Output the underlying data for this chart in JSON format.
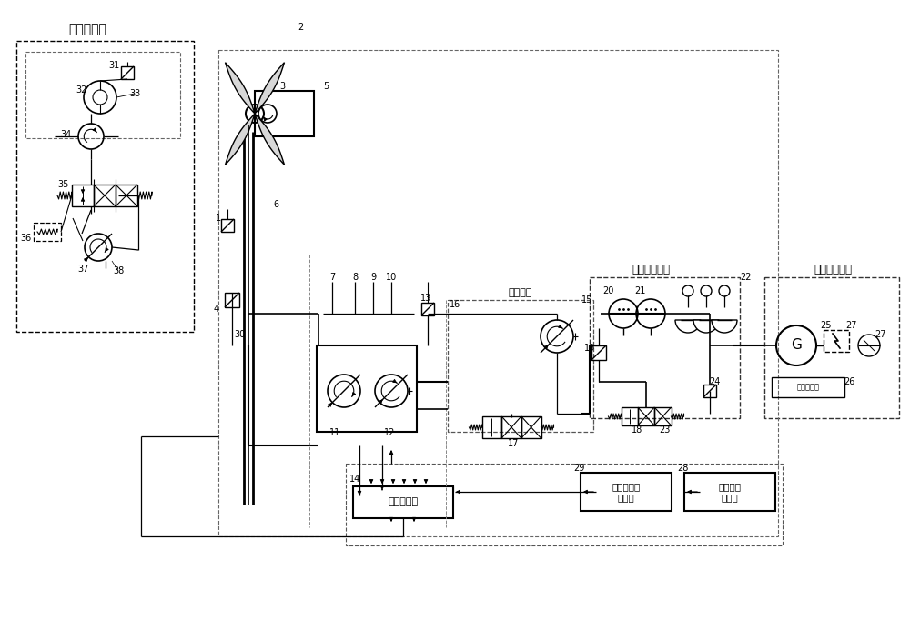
{
  "bg_color": "#ffffff",
  "line_color": "#000000",
  "labels": {
    "bianjuju": "变桨距系统",
    "yeyachuneng": "液压储能系统",
    "fadianbing": "发电并网模块",
    "bianliang_mada": "变量马达",
    "pinlv_kongzhi": "频率控制器",
    "chaoduan_yuce": "超短期预测\n控制器",
    "shuju_fenxi": "数据分析\n处理器",
    "duogong_yi": "多功能仪表"
  }
}
